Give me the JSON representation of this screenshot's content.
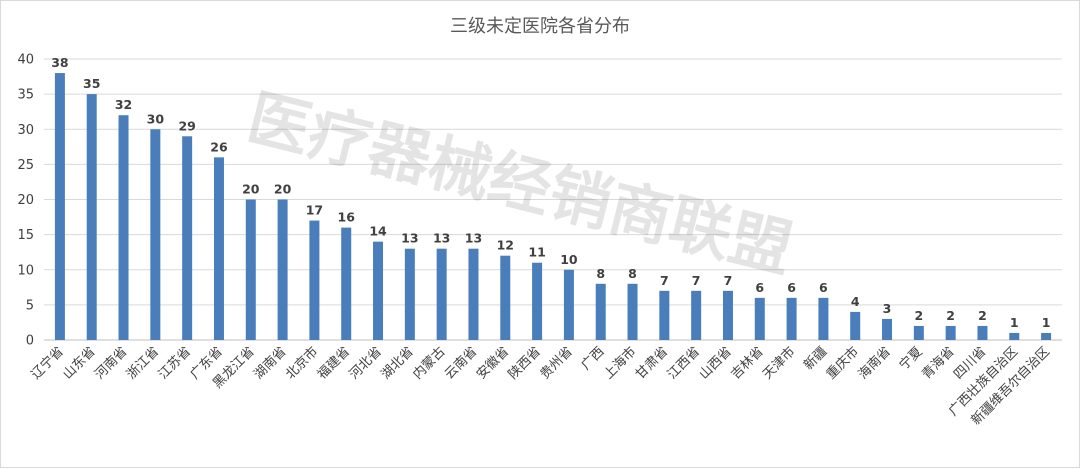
{
  "chart_data": {
    "type": "bar",
    "title": "三级未定医院各省分布",
    "watermark": "医疗器械经销商联盟",
    "xlabel": "",
    "ylabel": "",
    "ylim": [
      0,
      40
    ],
    "yticks": [
      0,
      5,
      10,
      15,
      20,
      25,
      30,
      35,
      40
    ],
    "grid": true,
    "legend": "none",
    "bar_color": "#4a7ebb",
    "categories": [
      "辽宁省",
      "山东省",
      "河南省",
      "浙江省",
      "江苏省",
      "广东省",
      "黑龙江省",
      "湖南省",
      "北京市",
      "福建省",
      "河北省",
      "湖北省",
      "内蒙古",
      "云南省",
      "安徽省",
      "陕西省",
      "贵州省",
      "广西",
      "上海市",
      "甘肃省",
      "江西省",
      "山西省",
      "吉林省",
      "天津市",
      "新疆",
      "重庆市",
      "海南省",
      "宁夏",
      "青海省",
      "四川省",
      "广西壮族自治区",
      "新疆维吾尔自治区"
    ],
    "values": [
      38,
      35,
      32,
      30,
      29,
      26,
      20,
      20,
      17,
      16,
      14,
      13,
      13,
      13,
      12,
      11,
      10,
      8,
      8,
      7,
      7,
      7,
      6,
      6,
      6,
      4,
      3,
      2,
      2,
      2,
      1,
      1
    ]
  }
}
